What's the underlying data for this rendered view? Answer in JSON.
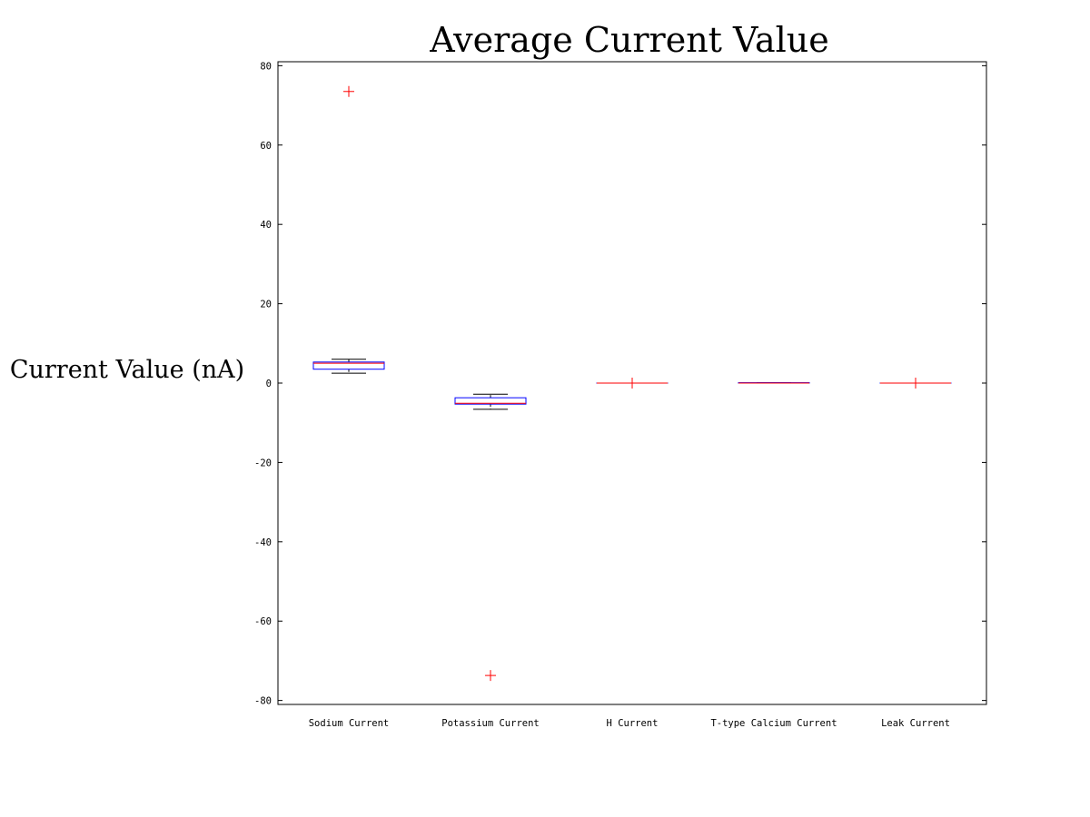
{
  "chart_data": {
    "type": "boxplot",
    "title": "Average Current Value",
    "xlabel": "",
    "ylabel": "Current Value (nA)",
    "ylim": [
      -81,
      81
    ],
    "yticks": [
      80,
      60,
      40,
      20,
      0,
      -20,
      -40,
      -60,
      -80
    ],
    "grid": false,
    "colors": {
      "box": "#0000ff",
      "median": "#ff0000",
      "whisker": "#000000",
      "outlier": "#ff0000",
      "axis": "#000000"
    },
    "categories": [
      "Sodium Current",
      "Potassium Current",
      "H Current",
      "T-type Calcium Current",
      "Leak Current"
    ],
    "boxes": [
      {
        "category": "Sodium Current",
        "whisker_low": 2.5,
        "q1": 3.5,
        "median": 5.0,
        "q3": 5.3,
        "whisker_high": 6.0,
        "outliers": [
          73.5
        ]
      },
      {
        "category": "Potassium Current",
        "whisker_low": -6.6,
        "q1": -5.3,
        "median": -5.1,
        "q3": -3.7,
        "whisker_high": -2.8,
        "outliers": [
          -73.7
        ]
      },
      {
        "category": "H Current",
        "whisker_low": 0.0,
        "q1": 0.0,
        "median": 0.0,
        "q3": 0.0,
        "whisker_high": 0.0,
        "outliers": [
          0.0
        ]
      },
      {
        "category": "T-type Calcium Current",
        "whisker_low": 0.0,
        "q1": 0.0,
        "median": 0.0,
        "q3": 0.1,
        "whisker_high": 0.1,
        "outliers": []
      },
      {
        "category": "Leak Current",
        "whisker_low": 0.0,
        "q1": 0.0,
        "median": 0.0,
        "q3": 0.0,
        "whisker_high": 0.0,
        "outliers": [
          0.0
        ]
      }
    ]
  }
}
